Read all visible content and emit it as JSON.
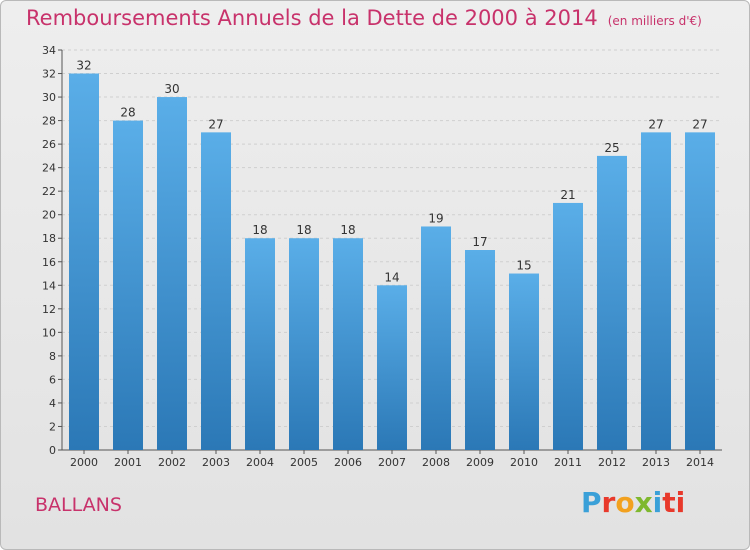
{
  "header": {
    "title": "Remboursements Annuels de la Dette de 2000 à 2014",
    "unit": "(en milliers d'€)"
  },
  "footer": {
    "commune": "BALLANS",
    "brand_letters": [
      "P",
      "r",
      "o",
      "x",
      "i",
      "ti"
    ]
  },
  "colors": {
    "title": "#c8326b",
    "bar_light": "#5aaee8",
    "bar_dark": "#2b78b6"
  },
  "chart_data": {
    "type": "bar",
    "title": "Remboursements Annuels de la Dette de 2000 à 2014",
    "categories": [
      "2000",
      "2001",
      "2002",
      "2003",
      "2004",
      "2005",
      "2006",
      "2007",
      "2008",
      "2009",
      "2010",
      "2011",
      "2012",
      "2013",
      "2014"
    ],
    "values": [
      32,
      28,
      30,
      27,
      18,
      18,
      18,
      14,
      19,
      17,
      15,
      21,
      25,
      27,
      27
    ],
    "ylim": [
      0,
      34
    ],
    "yticks": [
      0,
      2,
      4,
      6,
      8,
      10,
      12,
      14,
      16,
      18,
      20,
      22,
      24,
      26,
      28,
      30,
      32,
      34
    ],
    "grid": true,
    "xlabel": "",
    "ylabel": ""
  }
}
